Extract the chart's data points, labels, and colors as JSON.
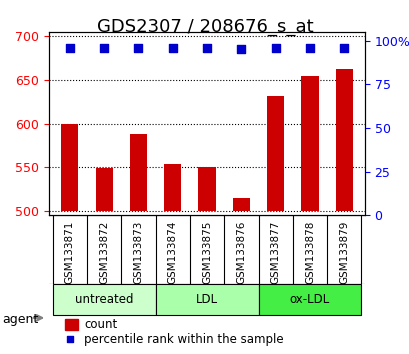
{
  "title": "GDS2307 / 208676_s_at",
  "samples": [
    "GSM133871",
    "GSM133872",
    "GSM133873",
    "GSM133874",
    "GSM133875",
    "GSM133876",
    "GSM133877",
    "GSM133878",
    "GSM133879"
  ],
  "counts": [
    600,
    549,
    588,
    554,
    550,
    515,
    631,
    655,
    662
  ],
  "percentiles": [
    96,
    96,
    96,
    96,
    96,
    95,
    96,
    96,
    96
  ],
  "groups": [
    {
      "label": "untreated",
      "samples": [
        0,
        1,
        2
      ],
      "color": "#ccffcc"
    },
    {
      "label": "LDL",
      "samples": [
        3,
        4,
        5
      ],
      "color": "#aaffaa"
    },
    {
      "label": "ox-LDL",
      "samples": [
        6,
        7,
        8
      ],
      "color": "#44ee44"
    }
  ],
  "ylim_left": [
    495,
    705
  ],
  "ylim_right": [
    0,
    105
  ],
  "yticks_left": [
    500,
    550,
    600,
    650,
    700
  ],
  "yticks_right": [
    0,
    25,
    50,
    75,
    100
  ],
  "ytick_labels_right": [
    "0",
    "25",
    "50",
    "75",
    "100%"
  ],
  "bar_color": "#cc0000",
  "dot_color": "#0000cc",
  "bar_width": 0.5,
  "bar_bottom": 500,
  "grid_color": "#000000",
  "bg_color": "#ffffff",
  "plot_bg": "#ffffff",
  "xlabel_area_color": "#cccccc",
  "agent_label": "agent",
  "legend_count_color": "#cc0000",
  "legend_dot_color": "#0000cc",
  "title_fontsize": 13,
  "tick_fontsize": 9,
  "label_fontsize": 9
}
